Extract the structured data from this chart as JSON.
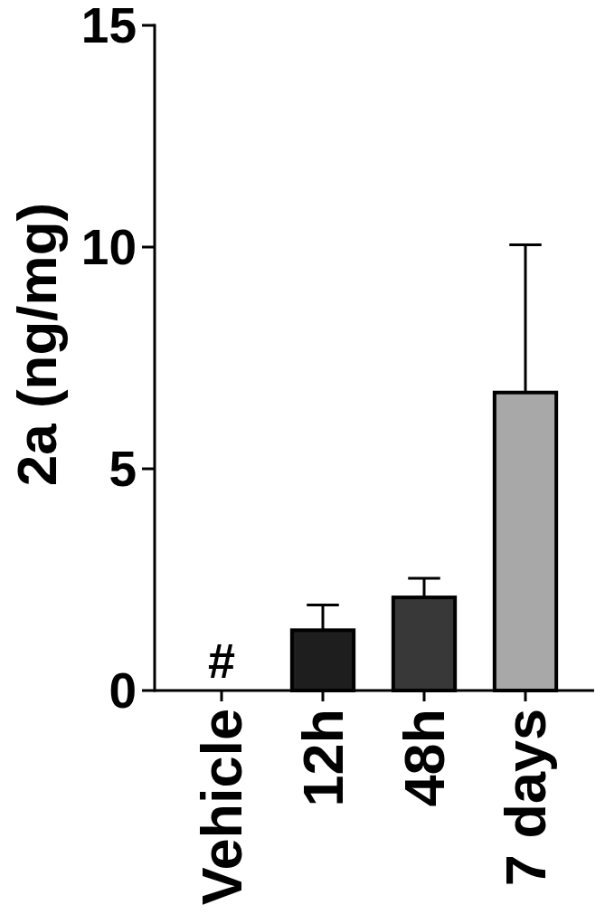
{
  "chart_data": {
    "type": "bar",
    "ylabel": "2a (ng/mg)",
    "categories": [
      "Vehicle",
      "12h",
      "48h",
      "7 days"
    ],
    "values": [
      0,
      1.36,
      2.1,
      6.72
    ],
    "value_labels": [
      "#",
      null,
      null,
      null
    ],
    "colors": [
      "#ffffff",
      "#1e1e1e",
      "#383838",
      "#a8a8a8"
    ],
    "errors": [
      null,
      [
        1.36,
        1.93
      ],
      [
        2.1,
        2.53
      ],
      [
        6.72,
        10.05
      ]
    ],
    "ylim": [
      0,
      15
    ],
    "yticks": [
      0,
      5,
      10,
      15
    ]
  }
}
